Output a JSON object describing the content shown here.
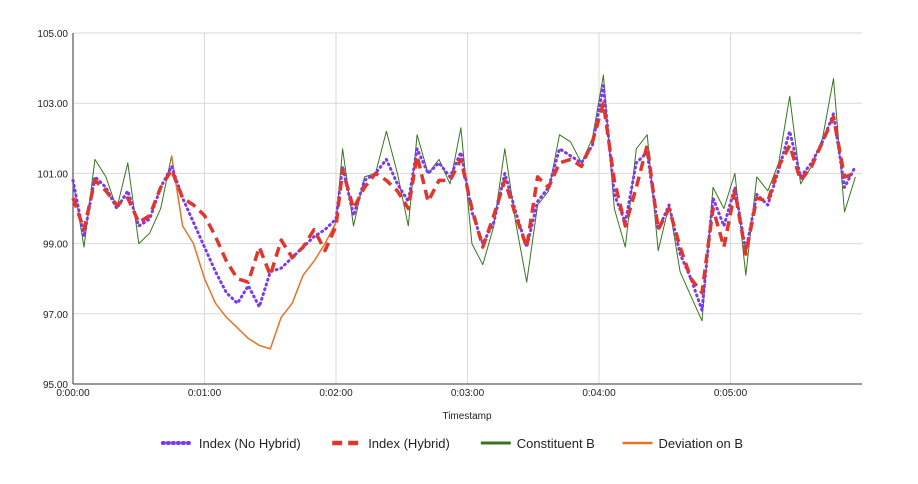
{
  "chart_data": {
    "type": "line",
    "title": "",
    "xlabel": "Timestamp",
    "ylabel": "",
    "x_unit": "seconds",
    "xlim": [
      0,
      360
    ],
    "ylim": [
      95,
      105
    ],
    "x_ticks": [
      {
        "value": 0,
        "label": "0:00:00"
      },
      {
        "value": 60,
        "label": "0:01:00"
      },
      {
        "value": 120,
        "label": "0:02:00"
      },
      {
        "value": 180,
        "label": "0:03:00"
      },
      {
        "value": 240,
        "label": "0:04:00"
      },
      {
        "value": 300,
        "label": "0:05:00"
      }
    ],
    "y_ticks": [
      {
        "value": 95,
        "label": "95.00"
      },
      {
        "value": 97,
        "label": "97.00"
      },
      {
        "value": 99,
        "label": "99.00"
      },
      {
        "value": 101,
        "label": "101.00"
      },
      {
        "value": 103,
        "label": "103.00"
      },
      {
        "value": 105,
        "label": "105.00"
      }
    ],
    "grid": true,
    "legend_position": "bottom",
    "series": [
      {
        "name": "Constituent B",
        "color": "#38761d",
        "style": "solid-thin",
        "points": [
          [
            0,
            100.8
          ],
          [
            5,
            98.9
          ],
          [
            10,
            101.4
          ],
          [
            15,
            100.9
          ],
          [
            20,
            100.0
          ],
          [
            25,
            101.3
          ],
          [
            30,
            99.0
          ],
          [
            35,
            99.3
          ],
          [
            40,
            100.0
          ],
          [
            45,
            101.5
          ],
          [
            50,
            99.5
          ],
          [
            55,
            99.0
          ],
          [
            60,
            98.0
          ],
          [
            65,
            97.3
          ],
          [
            70,
            96.9
          ],
          [
            75,
            96.6
          ],
          [
            80,
            96.3
          ],
          [
            85,
            96.1
          ],
          [
            90,
            96.0
          ],
          [
            95,
            96.9
          ],
          [
            100,
            97.3
          ],
          [
            105,
            98.1
          ],
          [
            110,
            98.5
          ],
          [
            115,
            99.0
          ],
          [
            120,
            99.6
          ],
          [
            123,
            101.7
          ],
          [
            128,
            99.5
          ],
          [
            133,
            100.9
          ],
          [
            138,
            101.0
          ],
          [
            143,
            102.2
          ],
          [
            148,
            101.0
          ],
          [
            153,
            99.5
          ],
          [
            157,
            102.1
          ],
          [
            162,
            101.0
          ],
          [
            167,
            101.4
          ],
          [
            172,
            100.7
          ],
          [
            177,
            102.3
          ],
          [
            182,
            99.0
          ],
          [
            187,
            98.4
          ],
          [
            192,
            99.5
          ],
          [
            197,
            101.7
          ],
          [
            202,
            99.6
          ],
          [
            207,
            97.9
          ],
          [
            212,
            100.1
          ],
          [
            217,
            100.5
          ],
          [
            222,
            102.1
          ],
          [
            227,
            101.9
          ],
          [
            232,
            101.3
          ],
          [
            237,
            102.0
          ],
          [
            242,
            103.8
          ],
          [
            247,
            100.0
          ],
          [
            252,
            98.9
          ],
          [
            257,
            101.7
          ],
          [
            262,
            102.1
          ],
          [
            267,
            98.8
          ],
          [
            272,
            100.1
          ],
          [
            277,
            98.2
          ],
          [
            282,
            97.5
          ],
          [
            287,
            96.8
          ],
          [
            292,
            100.6
          ],
          [
            297,
            100.0
          ],
          [
            302,
            101.0
          ],
          [
            307,
            98.1
          ],
          [
            312,
            100.9
          ],
          [
            317,
            100.5
          ],
          [
            322,
            101.3
          ],
          [
            327,
            103.2
          ],
          [
            332,
            100.7
          ],
          [
            337,
            101.2
          ],
          [
            342,
            102.0
          ],
          [
            347,
            103.7
          ],
          [
            352,
            99.9
          ],
          [
            357,
            100.9
          ]
        ]
      },
      {
        "name": "Deviation on B",
        "color": "#e8742a",
        "style": "solid",
        "points": [
          [
            45,
            101.5
          ],
          [
            50,
            99.5
          ],
          [
            55,
            99.0
          ],
          [
            60,
            98.0
          ],
          [
            65,
            97.3
          ],
          [
            70,
            96.9
          ],
          [
            75,
            96.6
          ],
          [
            80,
            96.3
          ],
          [
            85,
            96.1
          ],
          [
            90,
            96.0
          ],
          [
            95,
            96.9
          ],
          [
            100,
            97.3
          ],
          [
            105,
            98.1
          ],
          [
            110,
            98.5
          ],
          [
            115,
            99.0
          ],
          [
            120,
            99.6
          ]
        ]
      },
      {
        "name": "Index (No Hybrid)",
        "color": "#7c3aed",
        "style": "dotted",
        "points": [
          [
            0,
            100.8
          ],
          [
            5,
            99.2
          ],
          [
            10,
            100.9
          ],
          [
            15,
            100.6
          ],
          [
            20,
            100.0
          ],
          [
            25,
            100.5
          ],
          [
            30,
            99.5
          ],
          [
            35,
            99.7
          ],
          [
            40,
            100.6
          ],
          [
            45,
            101.2
          ],
          [
            50,
            100.3
          ],
          [
            55,
            99.6
          ],
          [
            60,
            98.9
          ],
          [
            65,
            98.2
          ],
          [
            70,
            97.6
          ],
          [
            75,
            97.3
          ],
          [
            80,
            97.8
          ],
          [
            85,
            97.2
          ],
          [
            90,
            98.2
          ],
          [
            95,
            98.3
          ],
          [
            100,
            98.6
          ],
          [
            105,
            98.9
          ],
          [
            110,
            99.2
          ],
          [
            115,
            99.4
          ],
          [
            120,
            99.7
          ],
          [
            123,
            101.2
          ],
          [
            128,
            99.8
          ],
          [
            133,
            100.8
          ],
          [
            138,
            101.0
          ],
          [
            143,
            101.4
          ],
          [
            148,
            100.7
          ],
          [
            153,
            100.2
          ],
          [
            157,
            101.7
          ],
          [
            162,
            101.0
          ],
          [
            167,
            101.3
          ],
          [
            172,
            100.9
          ],
          [
            177,
            101.6
          ],
          [
            182,
            99.9
          ],
          [
            187,
            99.0
          ],
          [
            192,
            99.6
          ],
          [
            197,
            101.0
          ],
          [
            202,
            99.9
          ],
          [
            207,
            98.9
          ],
          [
            212,
            100.2
          ],
          [
            217,
            100.6
          ],
          [
            222,
            101.7
          ],
          [
            227,
            101.5
          ],
          [
            232,
            101.3
          ],
          [
            237,
            101.8
          ],
          [
            242,
            103.5
          ],
          [
            247,
            100.4
          ],
          [
            252,
            99.6
          ],
          [
            257,
            101.3
          ],
          [
            262,
            101.6
          ],
          [
            267,
            99.4
          ],
          [
            272,
            100.1
          ],
          [
            277,
            98.7
          ],
          [
            282,
            98.0
          ],
          [
            287,
            97.1
          ],
          [
            292,
            100.3
          ],
          [
            297,
            99.5
          ],
          [
            302,
            100.6
          ],
          [
            307,
            98.8
          ],
          [
            312,
            100.4
          ],
          [
            317,
            100.1
          ],
          [
            322,
            101.1
          ],
          [
            327,
            102.2
          ],
          [
            332,
            100.9
          ],
          [
            337,
            101.3
          ],
          [
            342,
            101.9
          ],
          [
            347,
            102.7
          ],
          [
            352,
            100.6
          ],
          [
            357,
            101.2
          ]
        ]
      },
      {
        "name": "Index (Hybrid)",
        "color": "#e0362c",
        "style": "dashed",
        "points": [
          [
            0,
            100.3
          ],
          [
            5,
            99.4
          ],
          [
            10,
            100.8
          ],
          [
            15,
            100.5
          ],
          [
            20,
            100.1
          ],
          [
            25,
            100.3
          ],
          [
            30,
            99.6
          ],
          [
            35,
            99.8
          ],
          [
            40,
            100.6
          ],
          [
            45,
            101.1
          ],
          [
            50,
            100.3
          ],
          [
            55,
            100.1
          ],
          [
            60,
            99.8
          ],
          [
            65,
            99.2
          ],
          [
            70,
            98.5
          ],
          [
            75,
            98.0
          ],
          [
            80,
            97.9
          ],
          [
            85,
            98.9
          ],
          [
            90,
            98.1
          ],
          [
            95,
            99.1
          ],
          [
            100,
            98.6
          ],
          [
            105,
            98.9
          ],
          [
            110,
            99.4
          ],
          [
            115,
            98.8
          ],
          [
            120,
            99.5
          ],
          [
            123,
            101.1
          ],
          [
            128,
            100.0
          ],
          [
            133,
            100.6
          ],
          [
            138,
            101.0
          ],
          [
            143,
            100.8
          ],
          [
            148,
            100.5
          ],
          [
            153,
            100.0
          ],
          [
            157,
            101.5
          ],
          [
            162,
            100.2
          ],
          [
            167,
            100.8
          ],
          [
            172,
            100.8
          ],
          [
            177,
            101.4
          ],
          [
            182,
            100.0
          ],
          [
            187,
            98.9
          ],
          [
            192,
            99.8
          ],
          [
            197,
            100.8
          ],
          [
            202,
            99.8
          ],
          [
            207,
            98.9
          ],
          [
            212,
            100.9
          ],
          [
            217,
            100.6
          ],
          [
            222,
            101.3
          ],
          [
            227,
            101.4
          ],
          [
            232,
            101.2
          ],
          [
            237,
            101.9
          ],
          [
            242,
            103.0
          ],
          [
            247,
            100.8
          ],
          [
            252,
            99.5
          ],
          [
            257,
            100.6
          ],
          [
            262,
            101.8
          ],
          [
            267,
            99.4
          ],
          [
            272,
            100.0
          ],
          [
            277,
            98.9
          ],
          [
            282,
            98.0
          ],
          [
            287,
            97.6
          ],
          [
            292,
            100.0
          ],
          [
            297,
            98.9
          ],
          [
            302,
            100.5
          ],
          [
            307,
            98.7
          ],
          [
            312,
            100.3
          ],
          [
            317,
            100.2
          ],
          [
            322,
            101.2
          ],
          [
            327,
            101.8
          ],
          [
            332,
            100.8
          ],
          [
            337,
            101.2
          ],
          [
            342,
            101.9
          ],
          [
            347,
            102.6
          ],
          [
            352,
            100.9
          ],
          [
            357,
            101.0
          ]
        ]
      }
    ],
    "legend_order": [
      "Index (No Hybrid)",
      "Index (Hybrid)",
      "Constituent B",
      "Deviation on B"
    ]
  }
}
